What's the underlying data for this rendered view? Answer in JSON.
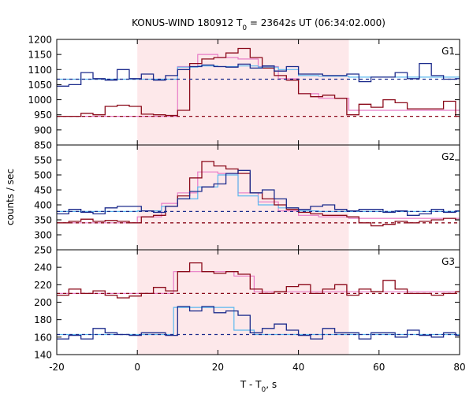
{
  "figure": {
    "title_prefix": "KONUS-WIND 180912 T",
    "title_sub": "0",
    "title_suffix": " = 23642s UT (06:34:02.000)",
    "xlabel_main": "T - T",
    "xlabel_sub": "0",
    "xlabel_suffix": ", s",
    "ylabel": "counts / sec",
    "xticks": [
      -20,
      0,
      20,
      40,
      60,
      80
    ]
  },
  "colors": {
    "shade": "#fde8ea",
    "red": "#8b0a1a",
    "blue": "#1c2b8c",
    "pink": "#e87bc6",
    "cyan": "#5bb8ef"
  },
  "chart_data": [
    {
      "type": "line",
      "panel": "G1",
      "xlim": [
        -20,
        80
      ],
      "ylim": [
        850,
        1200
      ],
      "yticks": [
        850,
        900,
        950,
        1000,
        1050,
        1100,
        1150,
        1200
      ],
      "shaded_interval": [
        0,
        52.5
      ],
      "series": [
        {
          "role": "data",
          "color_key": "red",
          "step": true,
          "x": [
            -20,
            -17,
            -14,
            -11,
            -8,
            -5,
            -2,
            1,
            4,
            7,
            10,
            13,
            16,
            19,
            22,
            25,
            28,
            31,
            34,
            37,
            40,
            43,
            46,
            49,
            52,
            55,
            58,
            61,
            64,
            67,
            70,
            73,
            76,
            79,
            80
          ],
          "y": [
            945,
            945,
            955,
            950,
            978,
            982,
            978,
            952,
            950,
            948,
            965,
            1120,
            1135,
            1140,
            1155,
            1170,
            1140,
            1105,
            1080,
            1065,
            1020,
            1010,
            1015,
            1005,
            950,
            985,
            975,
            1000,
            990,
            970,
            970,
            970,
            995,
            945,
            945
          ]
        },
        {
          "role": "fit",
          "color_key": "pink",
          "step": true,
          "x": [
            -20,
            6,
            10,
            15,
            20,
            25,
            30,
            35,
            40,
            45,
            52.5,
            80
          ],
          "y": [
            945,
            945,
            1110,
            1150,
            1140,
            1135,
            1110,
            1070,
            1020,
            1005,
            965,
            970
          ]
        },
        {
          "role": "background",
          "color_key": "red",
          "dashed": true,
          "x": [
            -20,
            80
          ],
          "y": [
            945,
            945
          ]
        },
        {
          "role": "data",
          "color_key": "blue",
          "step": true,
          "x": [
            -20,
            -17,
            -14,
            -11,
            -8,
            -5,
            -2,
            1,
            4,
            7,
            10,
            13,
            16,
            19,
            22,
            25,
            28,
            31,
            34,
            37,
            40,
            43,
            46,
            49,
            52,
            55,
            58,
            61,
            64,
            67,
            70,
            73,
            76,
            79,
            80
          ],
          "y": [
            1045,
            1050,
            1090,
            1070,
            1065,
            1100,
            1070,
            1085,
            1065,
            1080,
            1100,
            1110,
            1115,
            1110,
            1108,
            1118,
            1105,
            1112,
            1095,
            1110,
            1085,
            1085,
            1080,
            1080,
            1085,
            1060,
            1075,
            1075,
            1090,
            1070,
            1120,
            1080,
            1068,
            1070,
            1070
          ]
        },
        {
          "role": "fit",
          "color_key": "cyan",
          "step": true,
          "x": [
            -20,
            6,
            10,
            15,
            20,
            25,
            30,
            35,
            40,
            45,
            52.5,
            80
          ],
          "y": [
            1068,
            1068,
            1108,
            1112,
            1110,
            1112,
            1108,
            1100,
            1080,
            1078,
            1075,
            1070
          ]
        },
        {
          "role": "background",
          "color_key": "blue",
          "dashed": true,
          "x": [
            -20,
            80
          ],
          "y": [
            1068,
            1068
          ]
        }
      ]
    },
    {
      "type": "line",
      "panel": "G2",
      "xlim": [
        -20,
        80
      ],
      "ylim": [
        250,
        600
      ],
      "yticks": [
        250,
        300,
        350,
        400,
        450,
        500,
        550
      ],
      "shaded_interval": [
        0,
        52.5
      ],
      "series": [
        {
          "role": "data",
          "color_key": "red",
          "step": true,
          "x": [
            -20,
            -17,
            -14,
            -11,
            -8,
            -5,
            -2,
            1,
            4,
            7,
            10,
            13,
            16,
            19,
            22,
            25,
            28,
            31,
            34,
            37,
            40,
            43,
            46,
            49,
            52,
            55,
            58,
            61,
            64,
            67,
            70,
            73,
            76,
            79,
            80
          ],
          "y": [
            340,
            345,
            352,
            345,
            348,
            345,
            340,
            360,
            365,
            395,
            430,
            490,
            545,
            530,
            520,
            505,
            440,
            420,
            400,
            385,
            375,
            370,
            365,
            365,
            360,
            340,
            330,
            335,
            345,
            340,
            345,
            350,
            355,
            350,
            350
          ]
        },
        {
          "role": "fit",
          "color_key": "pink",
          "step": true,
          "x": [
            -20,
            0,
            6,
            10,
            15,
            20,
            25,
            30,
            35,
            40,
            45,
            52.5,
            80
          ],
          "y": [
            340,
            360,
            405,
            440,
            510,
            505,
            440,
            410,
            380,
            365,
            360,
            355,
            350
          ]
        },
        {
          "role": "background",
          "color_key": "red",
          "dashed": true,
          "x": [
            -20,
            80
          ],
          "y": [
            340,
            340
          ]
        },
        {
          "role": "data",
          "color_key": "blue",
          "step": true,
          "x": [
            -20,
            -17,
            -14,
            -11,
            -8,
            -5,
            -2,
            1,
            4,
            7,
            10,
            13,
            16,
            19,
            22,
            25,
            28,
            31,
            34,
            37,
            40,
            43,
            46,
            49,
            52,
            55,
            58,
            61,
            64,
            67,
            70,
            73,
            76,
            79,
            80
          ],
          "y": [
            370,
            385,
            375,
            370,
            390,
            395,
            395,
            380,
            375,
            395,
            420,
            445,
            460,
            470,
            505,
            515,
            440,
            450,
            420,
            390,
            385,
            395,
            400,
            385,
            380,
            385,
            385,
            375,
            380,
            365,
            370,
            385,
            375,
            380,
            380
          ]
        },
        {
          "role": "fit",
          "color_key": "cyan",
          "step": true,
          "x": [
            -20,
            0,
            6,
            10,
            15,
            20,
            25,
            30,
            35,
            40,
            45,
            52.5,
            80
          ],
          "y": [
            378,
            380,
            395,
            420,
            460,
            500,
            430,
            400,
            390,
            380,
            378,
            378,
            378
          ]
        },
        {
          "role": "background",
          "color_key": "blue",
          "dashed": true,
          "x": [
            -20,
            80
          ],
          "y": [
            378,
            378
          ]
        }
      ]
    },
    {
      "type": "line",
      "panel": "G3",
      "xlim": [
        -20,
        80
      ],
      "ylim": [
        140,
        260
      ],
      "yticks": [
        140,
        160,
        180,
        200,
        220,
        240
      ],
      "shaded_interval": [
        0,
        52.5
      ],
      "series": [
        {
          "role": "data",
          "color_key": "red",
          "step": true,
          "x": [
            -20,
            -17,
            -14,
            -11,
            -8,
            -5,
            -2,
            1,
            4,
            7,
            10,
            13,
            16,
            19,
            22,
            25,
            28,
            31,
            34,
            37,
            40,
            43,
            46,
            49,
            52,
            55,
            58,
            61,
            64,
            67,
            70,
            73,
            76,
            79,
            80
          ],
          "y": [
            208,
            215,
            210,
            213,
            208,
            205,
            207,
            210,
            217,
            213,
            235,
            245,
            235,
            233,
            235,
            232,
            215,
            210,
            212,
            218,
            220,
            210,
            215,
            220,
            208,
            215,
            212,
            225,
            215,
            210,
            210,
            208,
            210,
            212,
            212
          ]
        },
        {
          "role": "fit",
          "color_key": "pink",
          "step": true,
          "x": [
            -20,
            0,
            9,
            24,
            29,
            52.5,
            80
          ],
          "y": [
            210,
            210,
            235,
            230,
            212,
            212,
            210
          ]
        },
        {
          "role": "background",
          "color_key": "red",
          "dashed": true,
          "x": [
            -20,
            80
          ],
          "y": [
            210,
            210
          ]
        },
        {
          "role": "data",
          "color_key": "blue",
          "step": true,
          "x": [
            -20,
            -17,
            -14,
            -11,
            -8,
            -5,
            -2,
            1,
            4,
            7,
            10,
            13,
            16,
            19,
            22,
            25,
            28,
            31,
            34,
            37,
            40,
            43,
            46,
            49,
            52,
            55,
            58,
            61,
            64,
            67,
            70,
            73,
            76,
            79,
            80
          ],
          "y": [
            158,
            162,
            158,
            170,
            165,
            163,
            162,
            165,
            165,
            162,
            195,
            190,
            195,
            188,
            190,
            185,
            165,
            170,
            175,
            168,
            162,
            158,
            170,
            165,
            165,
            158,
            165,
            165,
            160,
            168,
            162,
            160,
            165,
            162,
            162
          ]
        },
        {
          "role": "fit",
          "color_key": "cyan",
          "step": true,
          "x": [
            -20,
            0,
            6,
            9,
            24,
            29,
            52.5,
            80
          ],
          "y": [
            163,
            163,
            163,
            194,
            168,
            163,
            163,
            163
          ]
        },
        {
          "role": "background",
          "color_key": "blue",
          "dashed": true,
          "x": [
            -20,
            80
          ],
          "y": [
            163,
            163
          ]
        }
      ]
    }
  ]
}
